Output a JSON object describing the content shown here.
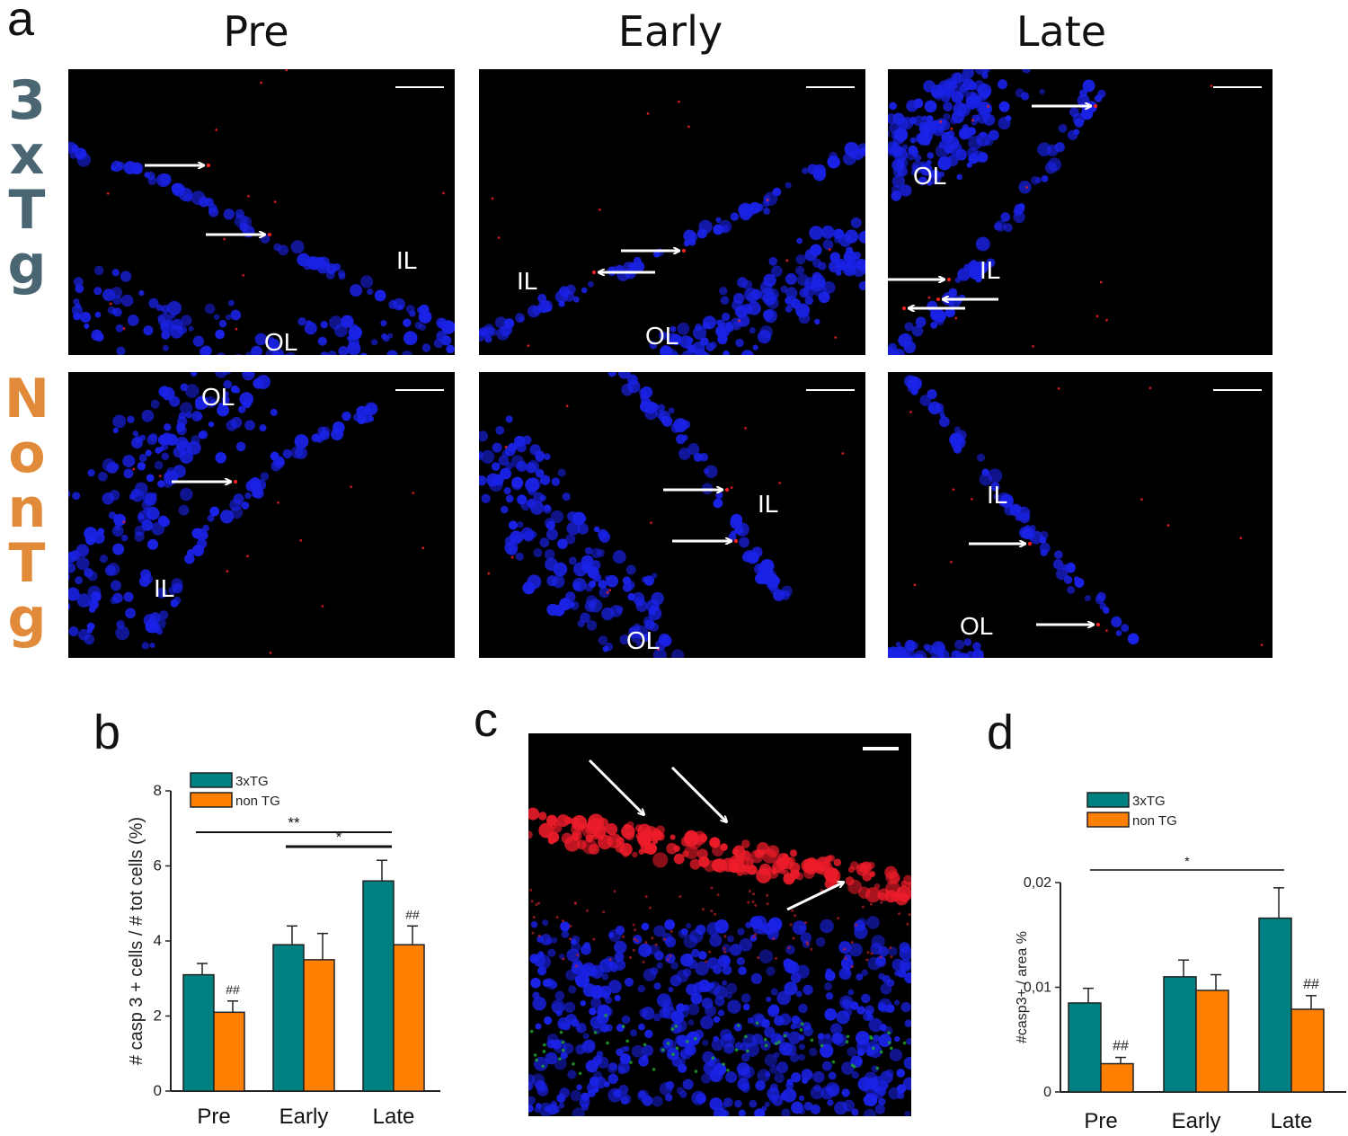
{
  "panels": {
    "a": "a",
    "b": "b",
    "c": "c",
    "d": "d"
  },
  "panel_a": {
    "columns": [
      "Pre",
      "Early",
      "Late"
    ],
    "rows": [
      {
        "label_chars": [
          "3",
          "x",
          "T",
          "g"
        ],
        "color": "#4a6672"
      },
      {
        "label_chars": [
          "N",
          "o",
          "n",
          "T",
          "g"
        ],
        "color": "#e08a3a"
      }
    ],
    "layer_labels": {
      "r0c0": [
        "IL",
        "OL"
      ],
      "r0c1": [
        "IL",
        "OL"
      ],
      "r0c2": [
        "OL",
        "IL"
      ],
      "r1c0": [
        "OL",
        "IL"
      ],
      "r1c1": [
        "IL",
        "OL"
      ],
      "r1c2": [
        "IL",
        "OL"
      ]
    },
    "stain_colors": {
      "nuclei": "#1a22e6",
      "caspase": "#ff2020",
      "background": "#000000"
    }
  },
  "chart_data": [
    {
      "type": "bar",
      "panel": "b",
      "categories": [
        "Pre",
        "Early",
        "Late"
      ],
      "series": [
        {
          "name": "3xTG",
          "values": [
            3.1,
            3.9,
            5.6
          ],
          "errors": [
            0.3,
            0.5,
            0.55
          ],
          "color": "#008080"
        },
        {
          "name": "non TG",
          "values": [
            2.1,
            3.5,
            3.9
          ],
          "errors": [
            0.3,
            0.7,
            0.5
          ],
          "color": "#ff8000"
        }
      ],
      "ylabel": "# casp 3 + cells / # tot cells (%)",
      "xlabel": "",
      "ylim": [
        0,
        8
      ],
      "yticks": [
        "0",
        "2",
        "4",
        "6",
        "8"
      ],
      "ytick_values": [
        0,
        2,
        4,
        6,
        8
      ],
      "legend_position": "top-left",
      "significance": [
        {
          "label": "**",
          "from": "Pre",
          "to": "Late"
        },
        {
          "label": "*",
          "from": "Early",
          "to": "Late"
        }
      ],
      "bar_marks": [
        {
          "category": "Pre",
          "label": "##"
        },
        {
          "category": "Late",
          "label": "##"
        }
      ]
    },
    {
      "type": "bar",
      "panel": "d",
      "categories": [
        "Pre",
        "Early",
        "Late"
      ],
      "series": [
        {
          "name": "3xTG",
          "values": [
            0.0085,
            0.011,
            0.0166
          ],
          "errors": [
            0.0014,
            0.0016,
            0.0029
          ],
          "color": "#008080"
        },
        {
          "name": "non TG",
          "values": [
            0.0027,
            0.0097,
            0.0079
          ],
          "errors": [
            0.0006,
            0.0015,
            0.0013
          ],
          "color": "#ff8000"
        }
      ],
      "ylabel": "#casp3+ / area   %",
      "xlabel": "",
      "ylim": [
        0,
        0.02
      ],
      "yticks": [
        "0",
        "0,01",
        "0,02"
      ],
      "ytick_values": [
        0,
        0.01,
        0.02
      ],
      "legend_position": "top-left",
      "significance": [
        {
          "label": "*",
          "from": "Pre",
          "to": "Late"
        }
      ],
      "bar_marks": [
        {
          "category": "Pre",
          "label": "##"
        },
        {
          "category": "Late",
          "label": "##"
        }
      ]
    }
  ]
}
